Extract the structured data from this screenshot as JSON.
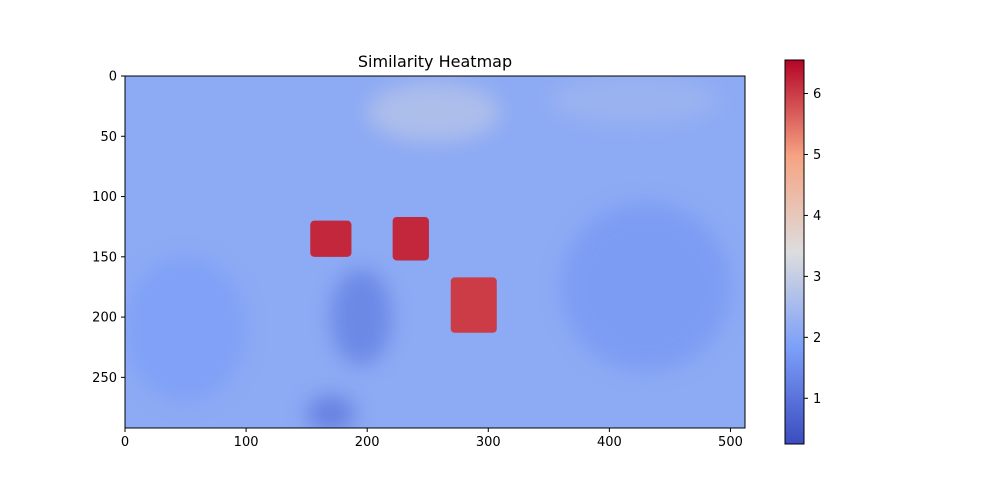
{
  "chart_data": {
    "type": "heatmap",
    "title": "Similarity Heatmap",
    "xlabel": "",
    "ylabel": "",
    "image_width": 512,
    "image_height": 292,
    "xlim": [
      0,
      512
    ],
    "ylim": [
      292,
      0
    ],
    "x_ticks": [
      0,
      100,
      200,
      300,
      400,
      500
    ],
    "y_ticks": [
      0,
      50,
      100,
      150,
      200,
      250
    ],
    "colormap": "coolwarm",
    "colorbar": {
      "vmin": 0.25,
      "vmax": 6.55,
      "ticks": [
        1,
        2,
        3,
        4,
        5,
        6
      ]
    },
    "background_value": 2.1,
    "regions": [
      {
        "label": "",
        "center": [
          170,
          135
        ],
        "size": [
          34,
          30
        ],
        "value": 6.2
      },
      {
        "label": "",
        "center": [
          236,
          135
        ],
        "size": [
          30,
          36
        ],
        "value": 6.2
      },
      {
        "label": "",
        "center": [
          288,
          190
        ],
        "size": [
          38,
          46
        ],
        "value": 6.0
      },
      {
        "label": "",
        "center": [
          255,
          30
        ],
        "size": [
          110,
          50
        ],
        "value": 2.8
      },
      {
        "label": "",
        "center": [
          430,
          175
        ],
        "size": [
          140,
          140
        ],
        "value": 1.7
      },
      {
        "label": "",
        "center": [
          195,
          200
        ],
        "size": [
          50,
          80
        ],
        "value": 1.2
      },
      {
        "label": "",
        "center": [
          170,
          280
        ],
        "size": [
          40,
          30
        ],
        "value": 1.0
      },
      {
        "label": "",
        "center": [
          50,
          210
        ],
        "size": [
          100,
          120
        ],
        "value": 1.8
      },
      {
        "label": "",
        "center": [
          420,
          20
        ],
        "size": [
          140,
          40
        ],
        "value": 2.4
      }
    ]
  }
}
